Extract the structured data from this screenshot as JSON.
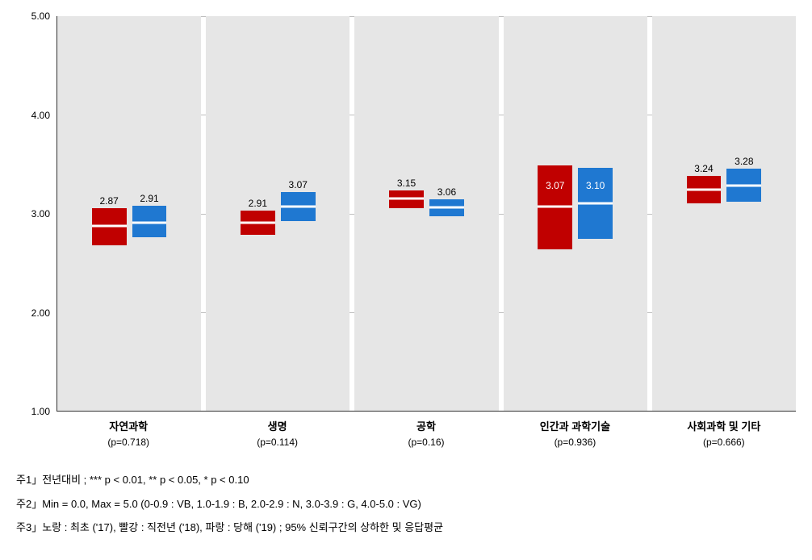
{
  "chart": {
    "type": "grouped-ci-band",
    "y_axis": {
      "min": 1.0,
      "max": 5.0,
      "ticks": [
        1.0,
        2.0,
        3.0,
        4.0,
        5.0
      ],
      "tick_labels": [
        "1.00",
        "2.00",
        "3.00",
        "4.00",
        "5.00"
      ]
    },
    "panel_bg": "#e6e6e6",
    "grid_color": "#bfbfbf",
    "midline_color": "#ffffff",
    "series": [
      {
        "key": "red",
        "color": "#c00000",
        "desc": "직전년('18)"
      },
      {
        "key": "blue",
        "color": "#1f78d1",
        "desc": "당해('19)"
      }
    ],
    "box_width_pct": 24,
    "box_gap_pct": 4,
    "groups": [
      {
        "label": "자연과학",
        "pvalue": "(p=0.718)",
        "red": {
          "mean": 2.87,
          "lo": 2.68,
          "hi": 3.05,
          "label": "2.87",
          "label_pos": "above"
        },
        "blue": {
          "mean": 2.91,
          "lo": 2.76,
          "hi": 3.08,
          "label": "2.91",
          "label_pos": "above"
        }
      },
      {
        "label": "생명",
        "pvalue": "(p=0.114)",
        "red": {
          "mean": 2.91,
          "lo": 2.78,
          "hi": 3.03,
          "label": "2.91",
          "label_pos": "above"
        },
        "blue": {
          "mean": 3.07,
          "lo": 2.92,
          "hi": 3.22,
          "label": "3.07",
          "label_pos": "above"
        }
      },
      {
        "label": "공학",
        "pvalue": "(p=0.16)",
        "red": {
          "mean": 3.15,
          "lo": 3.05,
          "hi": 3.23,
          "label": "3.15",
          "label_pos": "above"
        },
        "blue": {
          "mean": 3.06,
          "lo": 2.97,
          "hi": 3.14,
          "label": "3.06",
          "label_pos": "above"
        }
      },
      {
        "label": "인간과 과학기술",
        "pvalue": "(p=0.936)",
        "red": {
          "mean": 3.07,
          "lo": 2.64,
          "hi": 3.49,
          "label": "3.07",
          "label_pos": "inside"
        },
        "blue": {
          "mean": 3.1,
          "lo": 2.74,
          "hi": 3.46,
          "label": "3.10",
          "label_pos": "inside"
        }
      },
      {
        "label": "사회과학 및 기타",
        "pvalue": "(p=0.666)",
        "red": {
          "mean": 3.24,
          "lo": 3.1,
          "hi": 3.38,
          "label": "3.24",
          "label_pos": "above"
        },
        "blue": {
          "mean": 3.28,
          "lo": 3.12,
          "hi": 3.45,
          "label": "3.28",
          "label_pos": "above"
        }
      }
    ]
  },
  "footnotes": [
    "주1」전년대비 ; *** p < 0.01, ** p < 0.05, * p < 0.10",
    "주2」Min = 0.0, Max = 5.0 (0-0.9 : VB, 1.0-1.9 : B, 2.0-2.9 : N, 3.0-3.9 : G, 4.0-5.0 : VG)",
    "주3」노랑 : 최초 ('17), 빨강 : 직전년 ('18), 파랑 : 당해 ('19) ; 95% 신뢰구간의 상하한 및 응답평균"
  ]
}
